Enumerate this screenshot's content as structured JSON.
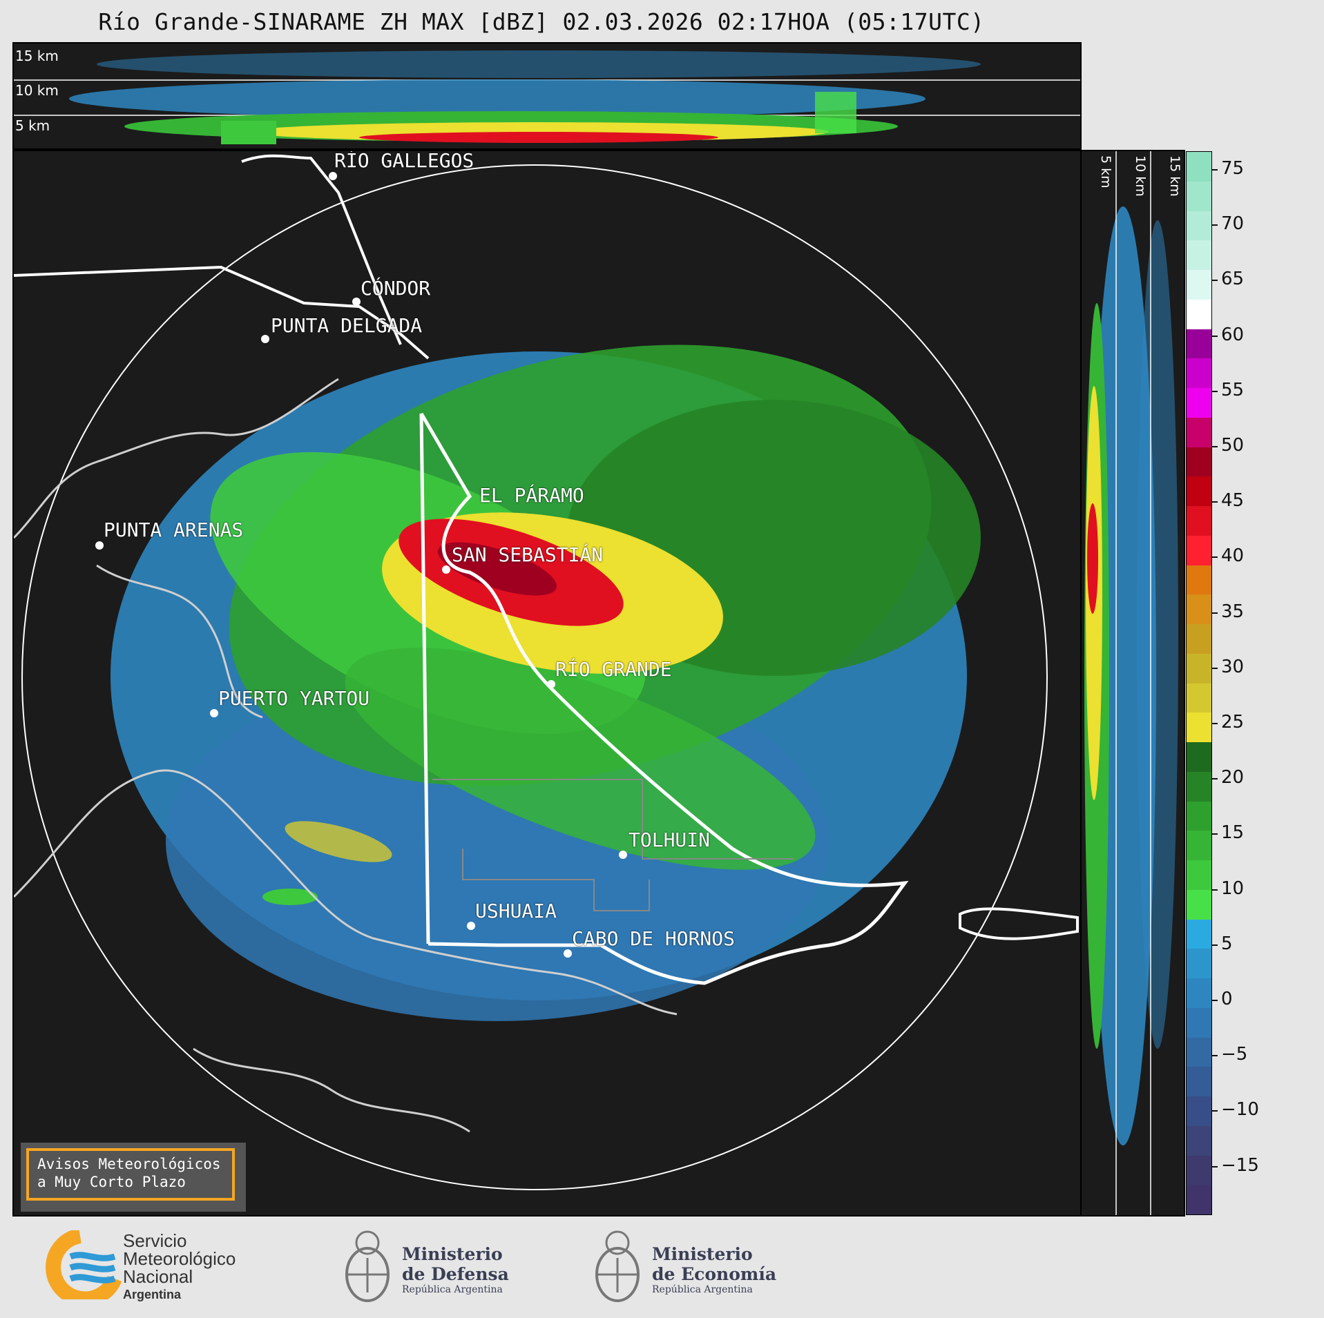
{
  "title": "Río Grande-SINARAME ZH MAX [dBZ] 02.03.2026 02:17HOA (05:17UTC)",
  "top_panel": {
    "height_labels": [
      "15 km",
      "10 km",
      "5 km"
    ]
  },
  "side_panel": {
    "height_labels": [
      "5 km",
      "10 km",
      "15 km"
    ]
  },
  "cities": [
    {
      "name": "RÍO GALLEGOS"
    },
    {
      "name": "CÓNDOR"
    },
    {
      "name": "PUNTA DELGADA"
    },
    {
      "name": "EL PÁRAMO"
    },
    {
      "name": "PUNTA ARENAS"
    },
    {
      "name": "SAN SEBASTIÁN"
    },
    {
      "name": "RÍO GRANDE"
    },
    {
      "name": "PUERTO YARTOU"
    },
    {
      "name": "TOLHUIN"
    },
    {
      "name": "USHUAIA"
    },
    {
      "name": "CABO DE HORNOS"
    }
  ],
  "colorbar": {
    "ticks": [
      "75",
      "70",
      "65",
      "60",
      "55",
      "50",
      "45",
      "40",
      "35",
      "30",
      "25",
      "20",
      "15",
      "10",
      "5",
      "0",
      "−5",
      "−10",
      "−15"
    ],
    "colors": [
      "#8ee0c0",
      "#a0e6cc",
      "#b2ecd8",
      "#c6f2e4",
      "#dcf8f0",
      "#ffffff",
      "#990099",
      "#cc00cc",
      "#ee00ee",
      "#c8006a",
      "#a00020",
      "#c00010",
      "#e01020",
      "#ff2030",
      "#e07810",
      "#d89018",
      "#c8a020",
      "#c8b428",
      "#d4c830",
      "#ece030",
      "#1e6a1e",
      "#268426",
      "#2ea02e",
      "#36b436",
      "#3ec83e",
      "#48e048",
      "#2aaae0",
      "#2c96cc",
      "#2e86c0",
      "#3078b4",
      "#326aa4",
      "#345c96",
      "#384e88",
      "#3c4478",
      "#3e3a6e",
      "#40346a"
    ]
  },
  "notice": {
    "line1": "Avisos Meteorológicos",
    "line2": "a Muy Corto Plazo"
  },
  "logos": {
    "smn": {
      "line1": "Servicio",
      "line2": "Meteorológico",
      "line3": "Nacional",
      "line4": "Argentina",
      "colors": {
        "ring": "#f5a623",
        "waves": "#2f9ad6"
      }
    },
    "defensa": {
      "line1": "Ministerio",
      "line2": "de Defensa",
      "line3": "República Argentina"
    },
    "economia": {
      "line1": "Ministerio",
      "line2": "de Economía",
      "line3": "República Argentina"
    }
  }
}
